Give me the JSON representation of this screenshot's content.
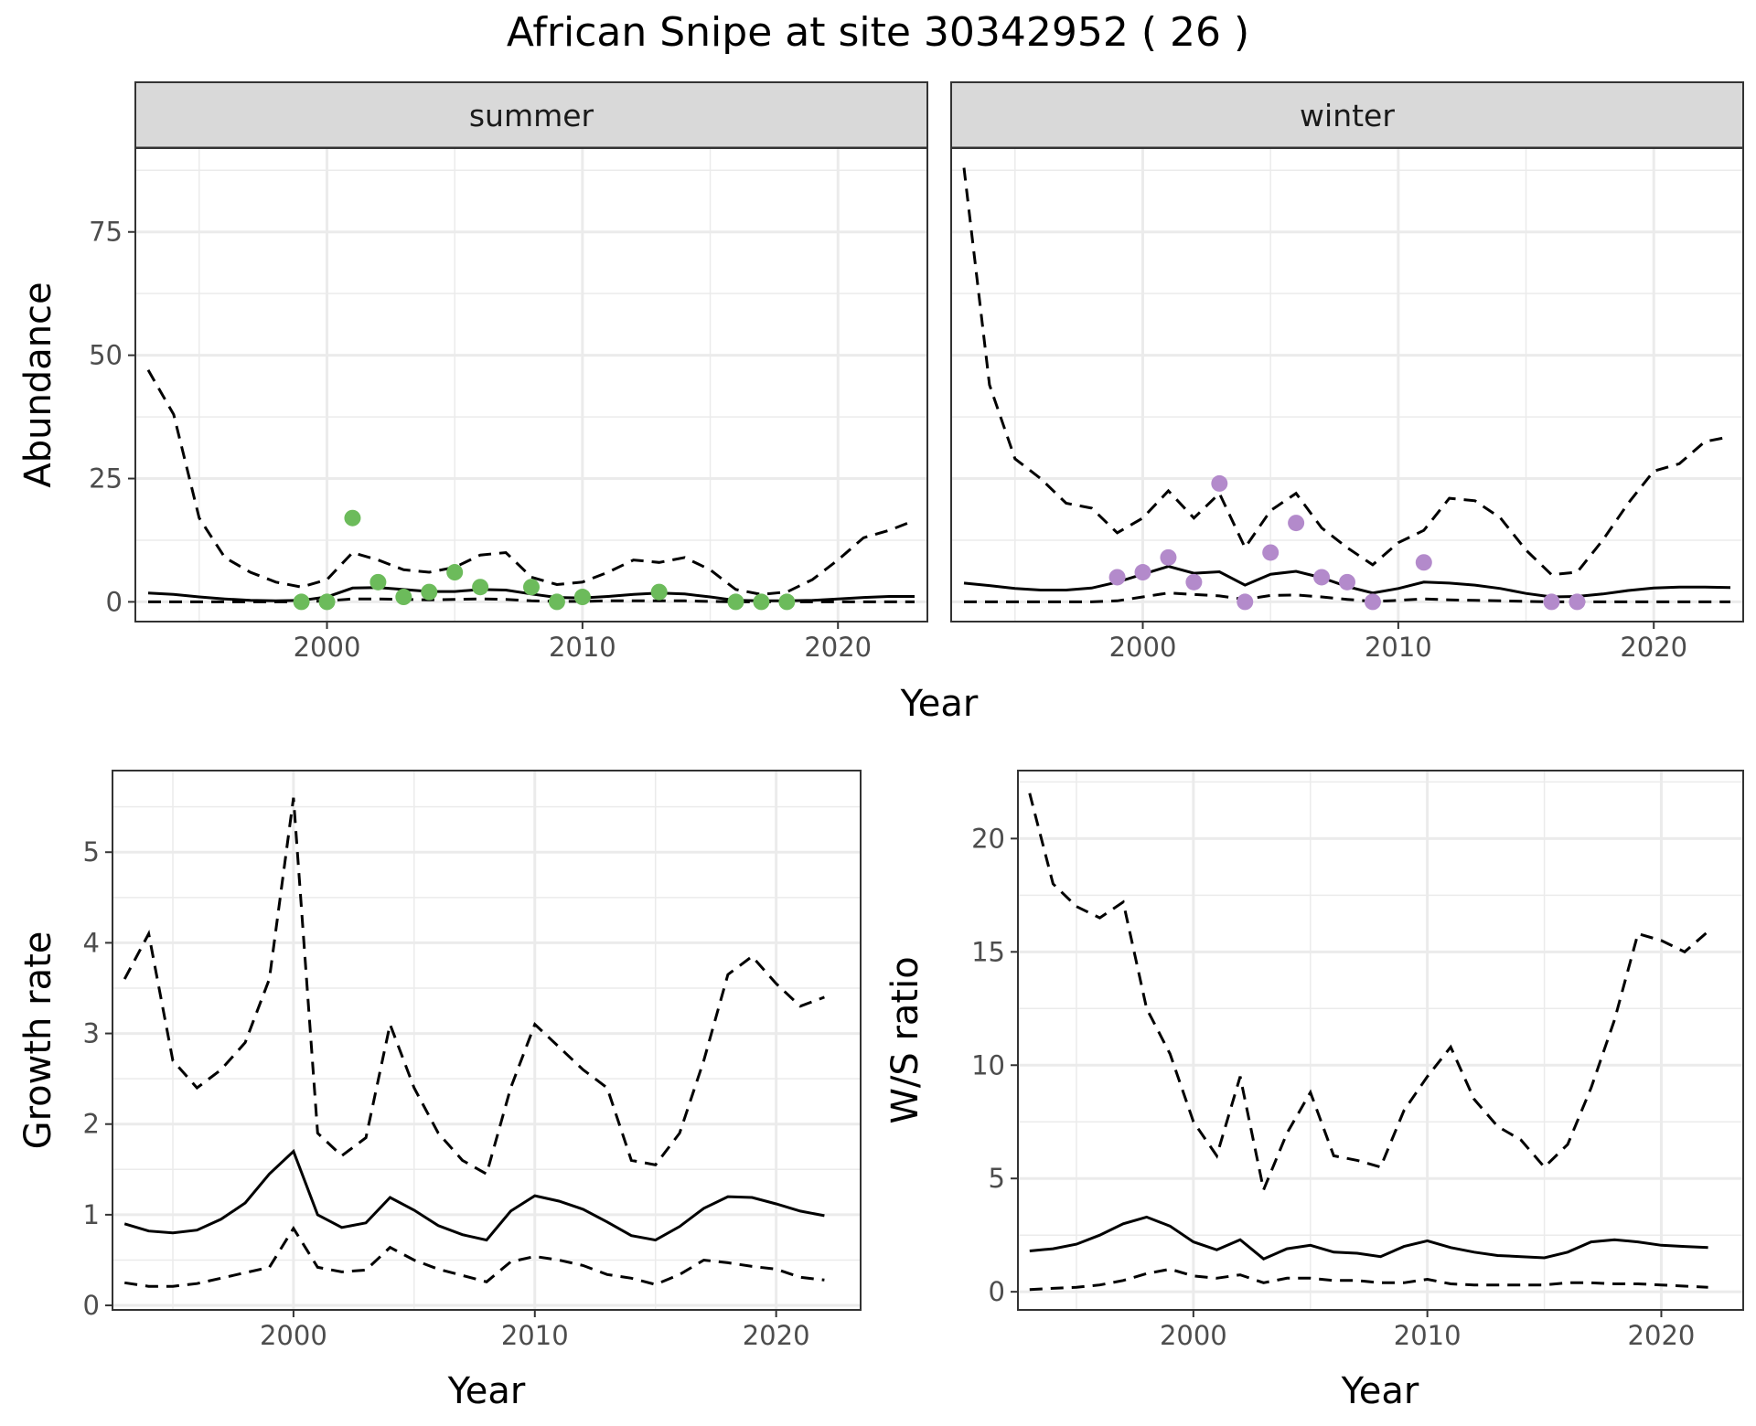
{
  "figure": {
    "title": "African Snipe at site 30342952 ( 26 )"
  },
  "colors": {
    "summer_points": "#6cbb5b",
    "winter_points": "#b38acb",
    "line": "#000000",
    "strip_fill": "#d9d9d9",
    "grid": "#ebebeb"
  },
  "chart_data": [
    {
      "type": "line",
      "panel": "abundance",
      "facets": [
        "summer",
        "winter"
      ],
      "xlabel": "Year",
      "ylabel": "Abundance",
      "xlim": [
        1992.5,
        2023.5
      ],
      "ylim": [
        -4,
        92
      ],
      "x_ticks": [
        2000,
        2010,
        2020
      ],
      "y_ticks": [
        0,
        25,
        50,
        75
      ],
      "grid": true,
      "summer": {
        "x": [
          1993,
          1994,
          1995,
          1996,
          1997,
          1998,
          1999,
          2000,
          2001,
          2002,
          2003,
          2004,
          2005,
          2006,
          2007,
          2008,
          2009,
          2010,
          2011,
          2012,
          2013,
          2014,
          2015,
          2016,
          2017,
          2018,
          2019,
          2020,
          2021,
          2022,
          2023
        ],
        "mean": [
          1.8,
          1.5,
          1.0,
          0.6,
          0.3,
          0.2,
          0.3,
          1.0,
          2.8,
          2.9,
          2.5,
          2.1,
          2.1,
          2.5,
          2.4,
          1.6,
          0.9,
          0.8,
          1.1,
          1.5,
          1.8,
          1.6,
          1.0,
          0.3,
          0.2,
          0.2,
          0.3,
          0.6,
          0.9,
          1.1,
          1.1
        ],
        "upper": [
          47,
          38,
          17,
          9,
          6,
          4,
          3,
          4.5,
          10,
          8.5,
          6.5,
          6,
          7,
          9.5,
          10,
          5,
          3.5,
          4,
          6,
          8.5,
          8,
          9,
          6.5,
          2.5,
          1.5,
          2,
          4.5,
          8.5,
          13,
          14.5,
          16.5
        ],
        "lower": [
          0,
          0,
          0,
          0,
          0,
          0,
          0,
          0.2,
          0.6,
          0.6,
          0.5,
          0.4,
          0.5,
          0.6,
          0.5,
          0.2,
          0.1,
          0.1,
          0.2,
          0.2,
          0.2,
          0.2,
          0.1,
          0,
          0,
          0,
          0,
          0,
          0,
          0,
          0
        ],
        "points_x": [
          1999,
          2000,
          2001,
          2002,
          2003,
          2004,
          2005,
          2006,
          2008,
          2009,
          2010,
          2013,
          2016,
          2017,
          2018
        ],
        "points_y": [
          0,
          0,
          17,
          4,
          1,
          2,
          6,
          3,
          3,
          0,
          1,
          2,
          0,
          0,
          0
        ]
      },
      "winter": {
        "x": [
          1993,
          1994,
          1995,
          1996,
          1997,
          1998,
          1999,
          2000,
          2001,
          2002,
          2003,
          2004,
          2005,
          2006,
          2007,
          2008,
          2009,
          2010,
          2011,
          2012,
          2013,
          2014,
          2015,
          2016,
          2017,
          2018,
          2019,
          2020,
          2021,
          2022,
          2023
        ],
        "mean": [
          3.8,
          3.3,
          2.7,
          2.4,
          2.4,
          2.8,
          4.0,
          5.6,
          7.2,
          5.8,
          6.1,
          3.4,
          5.6,
          6.2,
          4.9,
          3.1,
          1.8,
          2.7,
          4.0,
          3.8,
          3.4,
          2.7,
          1.7,
          1.0,
          1.1,
          1.6,
          2.3,
          2.8,
          3.0,
          3.0,
          2.9
        ],
        "upper": [
          88,
          44,
          29,
          25,
          20,
          19,
          14,
          17,
          22.5,
          17,
          22,
          11,
          18.5,
          22,
          15,
          11,
          7.5,
          12,
          14.5,
          21,
          20.5,
          17,
          10.5,
          5.5,
          6,
          12.5,
          20,
          26.5,
          28,
          32.5,
          33.5
        ],
        "lower": [
          0,
          0,
          0,
          0,
          0,
          0,
          0.2,
          1.0,
          1.8,
          1.5,
          1.2,
          0.5,
          1.3,
          1.4,
          1.0,
          0.5,
          0.1,
          0.3,
          0.6,
          0.4,
          0.3,
          0.2,
          0.1,
          0,
          0,
          0,
          0,
          0,
          0,
          0,
          0
        ],
        "points_x": [
          1999,
          2000,
          2001,
          2002,
          2003,
          2004,
          2005,
          2006,
          2007,
          2008,
          2009,
          2011,
          2016,
          2017
        ],
        "points_y": [
          5,
          6,
          9,
          4,
          24,
          0,
          10,
          16,
          5,
          4,
          0,
          8,
          0,
          0
        ]
      }
    },
    {
      "type": "line",
      "panel": "growth",
      "xlabel": "Year",
      "ylabel": "Growth rate",
      "xlim": [
        1992.5,
        2023.5
      ],
      "ylim": [
        -0.05,
        5.9
      ],
      "x_ticks": [
        2000,
        2010,
        2020
      ],
      "y_ticks": [
        0,
        1,
        2,
        3,
        4,
        5
      ],
      "grid": true,
      "x": [
        1993,
        1994,
        1995,
        1996,
        1997,
        1998,
        1999,
        2000,
        2001,
        2002,
        2003,
        2004,
        2005,
        2006,
        2007,
        2008,
        2009,
        2010,
        2011,
        2012,
        2013,
        2014,
        2015,
        2016,
        2017,
        2018,
        2019,
        2020,
        2021,
        2022
      ],
      "mean": [
        0.9,
        0.82,
        0.8,
        0.83,
        0.95,
        1.13,
        1.45,
        1.7,
        1.0,
        0.86,
        0.91,
        1.19,
        1.05,
        0.88,
        0.78,
        0.72,
        1.04,
        1.21,
        1.15,
        1.06,
        0.92,
        0.77,
        0.72,
        0.87,
        1.07,
        1.2,
        1.19,
        1.12,
        1.04,
        0.99
      ],
      "upper": [
        3.6,
        4.1,
        2.7,
        2.4,
        2.6,
        2.9,
        3.6,
        5.6,
        1.9,
        1.65,
        1.85,
        3.1,
        2.4,
        1.9,
        1.6,
        1.45,
        2.4,
        3.1,
        2.85,
        2.6,
        2.4,
        1.6,
        1.55,
        1.9,
        2.7,
        3.65,
        3.85,
        3.55,
        3.3,
        3.4
      ],
      "lower": [
        0.25,
        0.21,
        0.21,
        0.24,
        0.3,
        0.36,
        0.42,
        0.85,
        0.42,
        0.37,
        0.39,
        0.64,
        0.5,
        0.4,
        0.33,
        0.26,
        0.48,
        0.54,
        0.5,
        0.44,
        0.34,
        0.3,
        0.23,
        0.34,
        0.5,
        0.47,
        0.43,
        0.4,
        0.31,
        0.28
      ]
    },
    {
      "type": "line",
      "panel": "ws-ratio",
      "xlabel": "Year",
      "ylabel": "W/S ratio",
      "xlim": [
        1992.5,
        2023.5
      ],
      "ylim": [
        -0.8,
        23
      ],
      "x_ticks": [
        2000,
        2010,
        2020
      ],
      "y_ticks": [
        0,
        5,
        10,
        15,
        20
      ],
      "grid": true,
      "x": [
        1993,
        1994,
        1995,
        1996,
        1997,
        1998,
        1999,
        2000,
        2001,
        2002,
        2003,
        2004,
        2005,
        2006,
        2007,
        2008,
        2009,
        2010,
        2011,
        2012,
        2013,
        2014,
        2015,
        2016,
        2017,
        2018,
        2019,
        2020,
        2021,
        2022
      ],
      "mean": [
        1.8,
        1.9,
        2.1,
        2.5,
        3.0,
        3.3,
        2.9,
        2.2,
        1.85,
        2.3,
        1.45,
        1.9,
        2.05,
        1.75,
        1.7,
        1.55,
        2.0,
        2.25,
        1.95,
        1.75,
        1.6,
        1.55,
        1.5,
        1.75,
        2.2,
        2.3,
        2.2,
        2.05,
        2.0,
        1.95
      ],
      "upper": [
        22,
        18,
        17,
        16.5,
        17.2,
        12.5,
        10.5,
        7.5,
        6,
        9.5,
        4.5,
        7,
        8.8,
        6,
        5.8,
        5.5,
        8,
        9.5,
        10.8,
        8.5,
        7.3,
        6.7,
        5.5,
        6.5,
        9,
        12,
        15.8,
        15.5,
        15,
        15.9
      ],
      "lower": [
        0.1,
        0.15,
        0.2,
        0.3,
        0.5,
        0.8,
        1.0,
        0.7,
        0.6,
        0.75,
        0.4,
        0.6,
        0.6,
        0.5,
        0.5,
        0.4,
        0.4,
        0.55,
        0.35,
        0.3,
        0.3,
        0.3,
        0.3,
        0.4,
        0.4,
        0.35,
        0.35,
        0.3,
        0.25,
        0.2
      ]
    }
  ]
}
